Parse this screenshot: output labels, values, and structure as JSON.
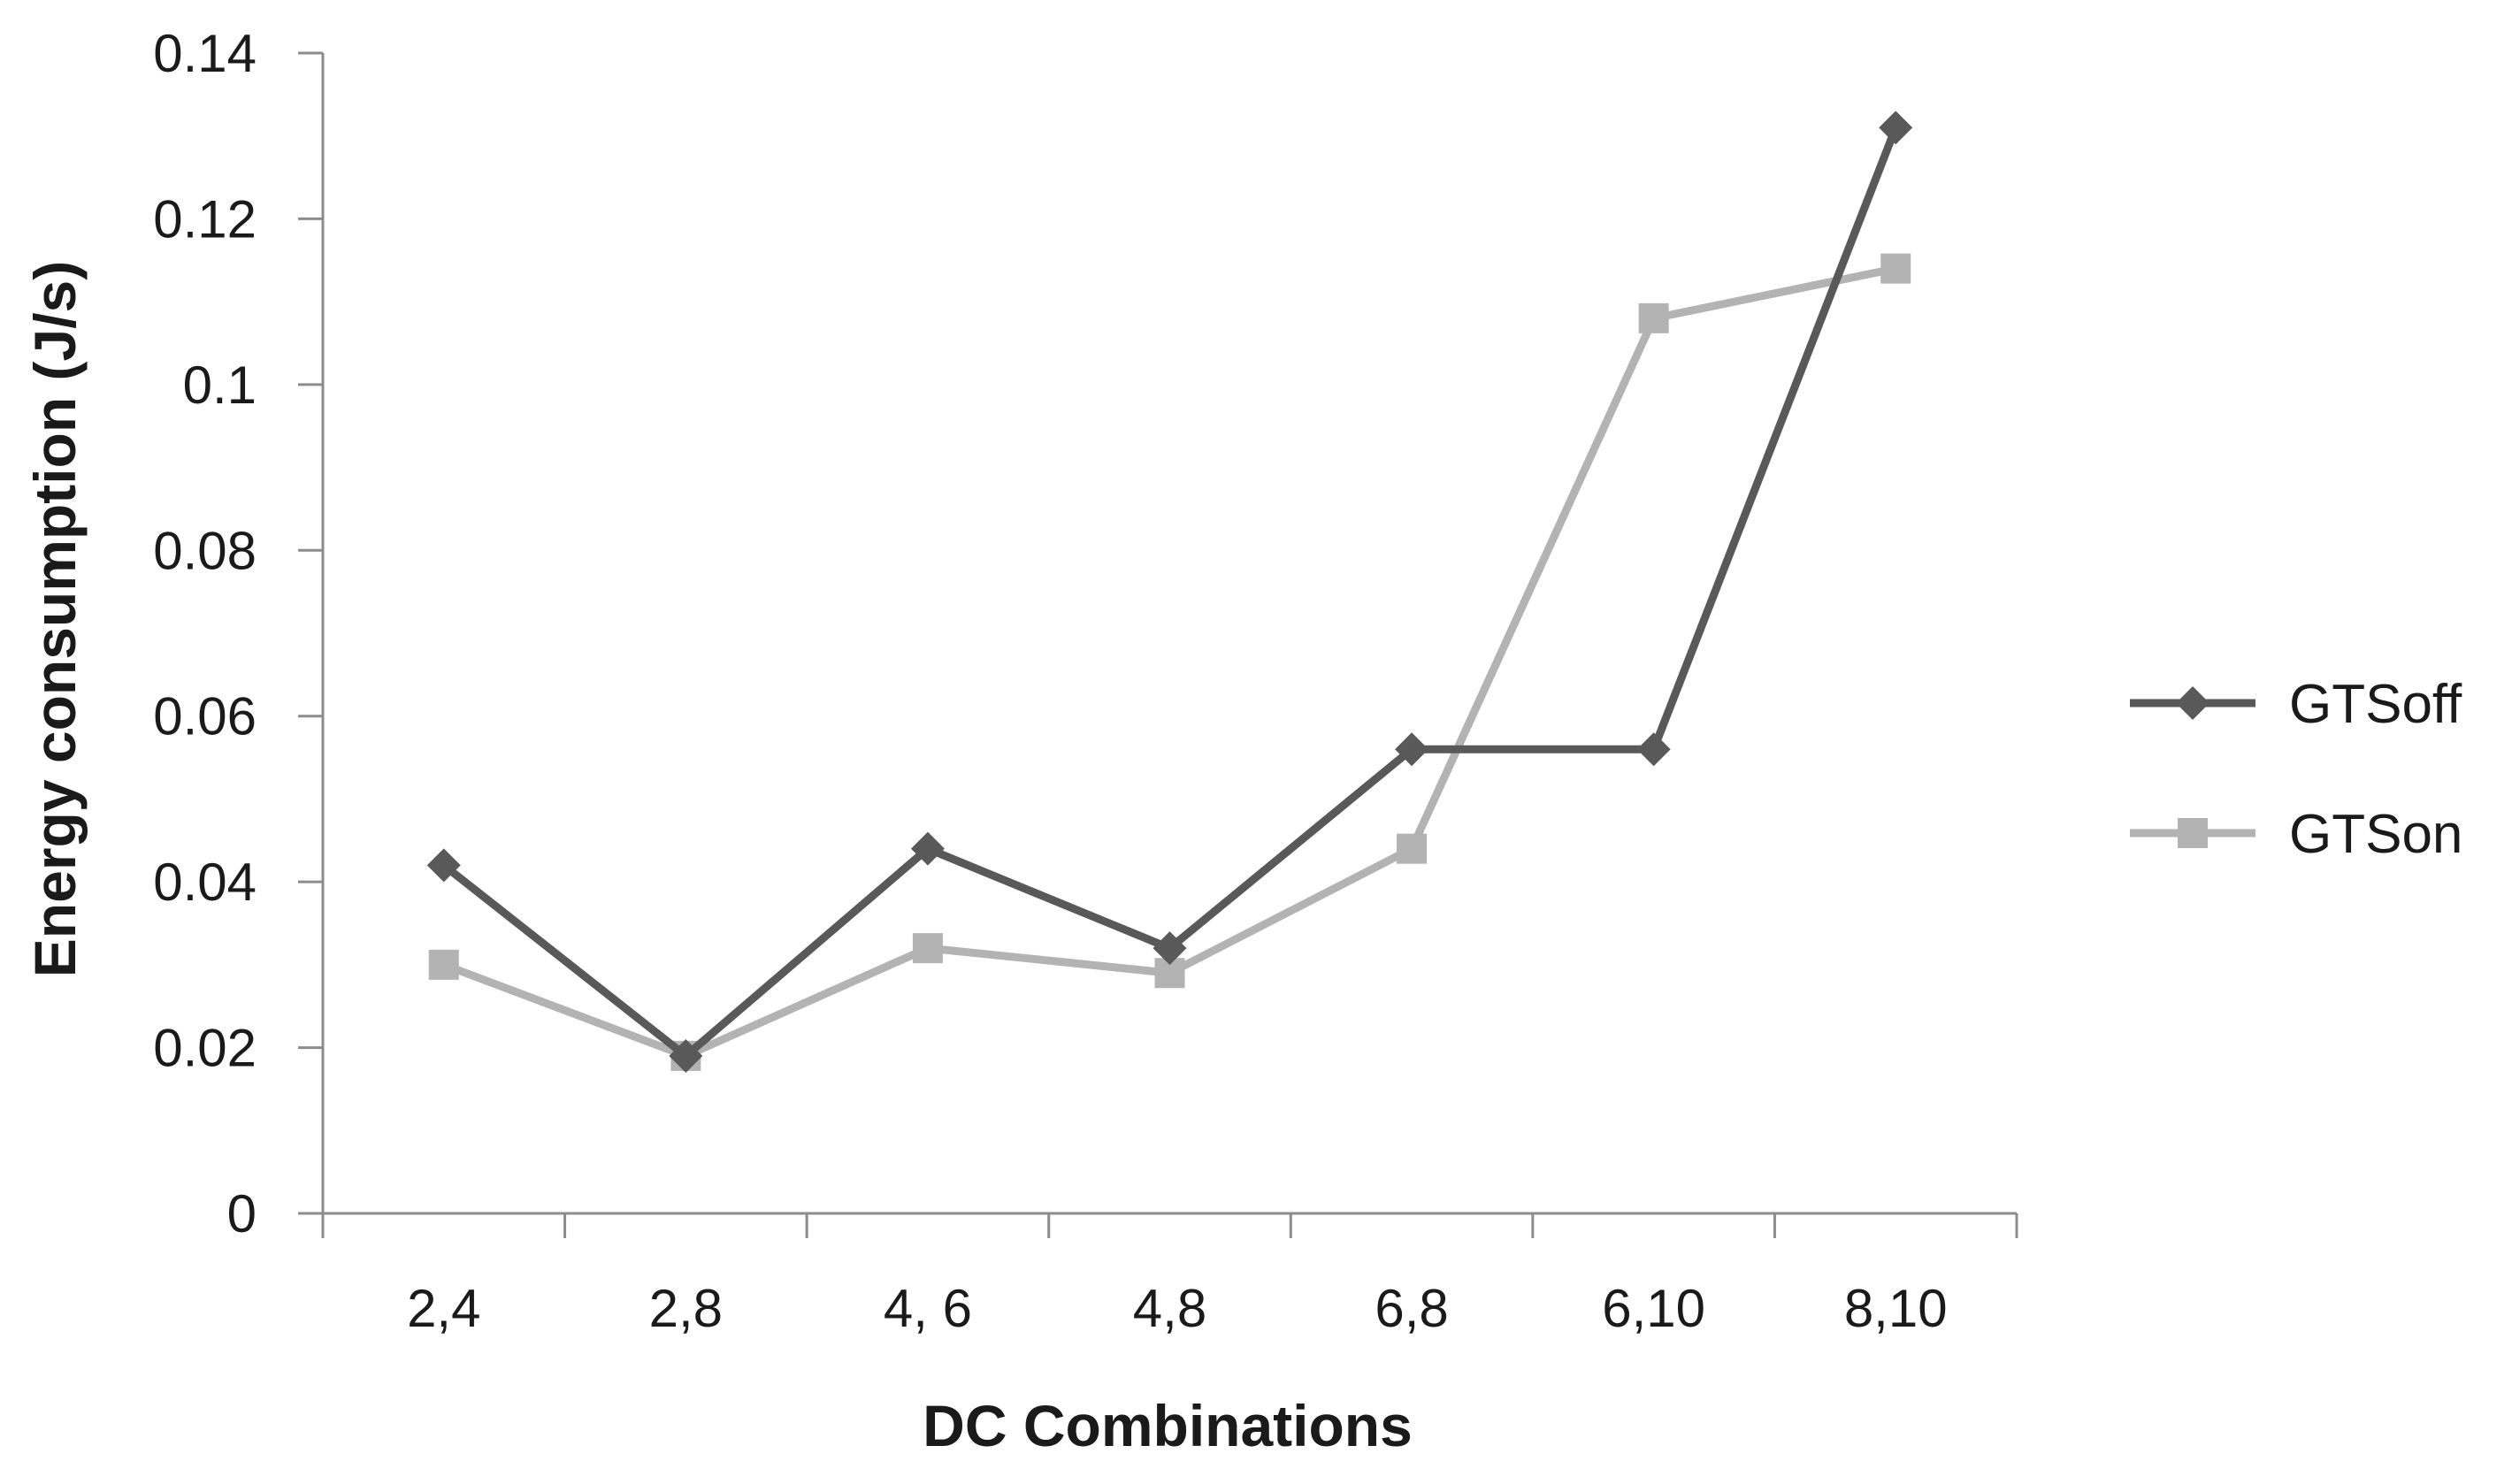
{
  "chart_data": {
    "type": "line",
    "title": "",
    "xlabel": "DC Combinations",
    "ylabel": "Energy consumption (J/s)",
    "categories": [
      "2,4",
      "2,8",
      "4, 6",
      "4,8",
      "6,8",
      "6,10",
      "8,10"
    ],
    "ylim": [
      0,
      0.14
    ],
    "yticks": [
      0,
      0.02,
      0.04,
      0.06,
      0.08,
      0.1,
      0.12,
      0.14
    ],
    "ytick_labels": [
      "0",
      "0.02",
      "0.04",
      "0.06",
      "0.08",
      "0.1",
      "0.12",
      "0.14"
    ],
    "grid": false,
    "legend_position": "right",
    "series": [
      {
        "name": "GTSoff",
        "marker": "diamond",
        "color": "#595959",
        "values": [
          0.042,
          0.019,
          0.044,
          0.032,
          0.056,
          0.056,
          0.131
        ]
      },
      {
        "name": "GTSon",
        "marker": "square",
        "color": "#b3b3b3",
        "values": [
          0.03,
          0.019,
          0.032,
          0.029,
          0.044,
          0.108,
          0.114
        ]
      }
    ]
  }
}
